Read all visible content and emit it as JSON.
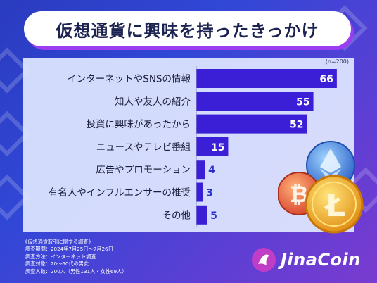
{
  "title": "仮想通貨に興味を持ったきっかけ",
  "sample_note": "(n=200)",
  "chart_data": {
    "type": "bar",
    "orientation": "horizontal",
    "categories": [
      "インターネットやSNSの情報",
      "知人や友人の紹介",
      "投資に興味があったから",
      "ニュースやテレビ番組",
      "広告やプロモーション",
      "有名人やインフルエンサーの推奨",
      "その他"
    ],
    "values": [
      66,
      55,
      52,
      15,
      4,
      3,
      5
    ],
    "xlim": [
      0,
      70
    ],
    "bar_color": "#3b1fd6",
    "label_color": "#ffffff",
    "small_label_color": "#2b2fc9"
  },
  "footer": {
    "survey_title": "《仮想通貨取引に関する調査》",
    "lines": [
      "調査期間：2024年7月25日〜7月26日",
      "調査方法：インターネット調査",
      "調査対象：20〜60代の男女",
      "調査人数：200人（男性131人・女性69人）"
    ]
  },
  "logo": {
    "text": "JinaCoin",
    "icon": "jinacoin-logo-icon",
    "accent": "#c23dc7"
  },
  "decorations": {
    "coins": [
      "bitcoin-coin-icon",
      "ethereum-coin-icon",
      "litecoin-coin-icon"
    ]
  },
  "colors": {
    "background_start": "#2a3bbf",
    "background_end": "#7a3bd0",
    "title_shadow": "#9b3df0",
    "title_text": "#1d2350"
  }
}
